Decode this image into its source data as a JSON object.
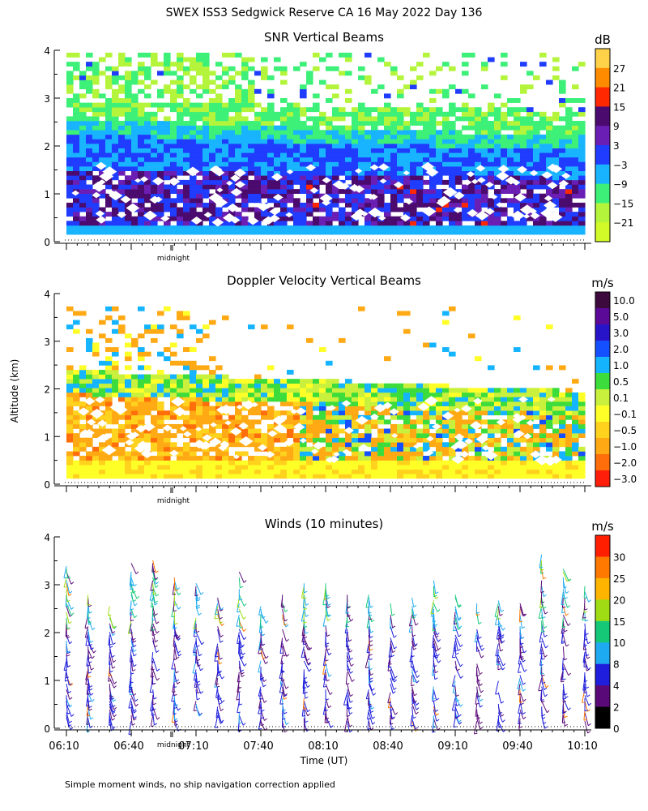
{
  "figure": {
    "title": "SWEX ISS3 Sedgwick Reserve CA  16 May 2022 Day 136",
    "ylabel": "Altitude (km)",
    "xlabel": "Time (UT)",
    "footnote": "Simple moment winds, no ship navigation correction applied",
    "midnight_label": "midnight",
    "x_ticks": [
      "06:10",
      "06:40",
      "07:10",
      "07:40",
      "08:10",
      "08:40",
      "09:10",
      "09:40",
      "10:10"
    ],
    "y_ticks": [
      "0",
      "1",
      "2",
      "3",
      "4"
    ]
  },
  "chart_data": [
    {
      "type": "heatmap",
      "title": "SNR Vertical Beams",
      "ylim": [
        0,
        4
      ],
      "xlim": [
        "06:10",
        "10:10"
      ],
      "colorbar": {
        "unit": "dB",
        "labels": [
          "27",
          "21",
          "15",
          "9",
          "3",
          "−3",
          "−9",
          "−15",
          "−21"
        ],
        "colors": [
          "#ffd24a",
          "#ff8c00",
          "#ff2800",
          "#4b0a6e",
          "#6a1eb4",
          "#1f3cff",
          "#19b4ff",
          "#3cf078",
          "#b4f53c",
          "#d2fa28"
        ]
      },
      "layers": [
        {
          "altitude_km": [
            3.0,
            3.9
          ],
          "value_db": -21,
          "description_color": "#d2fa28"
        },
        {
          "altitude_km": [
            2.2,
            3.0
          ],
          "value_db": -15,
          "description_color": "#3cf078"
        },
        {
          "altitude_km": [
            1.6,
            2.2
          ],
          "value_db": -9,
          "description_color": "#19b4ff"
        },
        {
          "altitude_km": [
            0.2,
            1.6
          ],
          "value_db": -3,
          "description_color": "#1f3cff"
        },
        {
          "altitude_km": [
            0.5,
            1.4
          ],
          "value_db": 9,
          "description_color": "#4b0a6e"
        }
      ]
    },
    {
      "type": "heatmap",
      "title": "Doppler Velocity Vertical Beams",
      "ylim": [
        0,
        4
      ],
      "xlim": [
        "06:10",
        "10:10"
      ],
      "colorbar": {
        "unit": "m/s",
        "labels": [
          "10.0",
          "5.0",
          "3.0",
          "2.0",
          "1.0",
          "0.5",
          "0.1",
          "−0.1",
          "−0.5",
          "−1.0",
          "−2.0",
          "−3.0"
        ],
        "colors": [
          "#3c0a3c",
          "#5a0a96",
          "#2814c8",
          "#1450ff",
          "#14b4ff",
          "#3cdc3c",
          "#c8f03c",
          "#ffff28",
          "#ffd21e",
          "#ffaa14",
          "#ff6e0a",
          "#ff1e0a"
        ]
      },
      "layers": [
        {
          "altitude_km": [
            0.1,
            0.4
          ],
          "value_ms": -0.1
        },
        {
          "altitude_km": [
            0.4,
            2.3
          ],
          "value_ms": -1.0
        },
        {
          "altitude_km": [
            1.6,
            2.0
          ],
          "value_ms": 0.5
        }
      ]
    },
    {
      "type": "scatter",
      "title": "Winds (10 minutes)",
      "ylim": [
        0,
        4
      ],
      "xlim": [
        "06:10",
        "10:10"
      ],
      "colorbar": {
        "unit": "m/s",
        "labels": [
          "30",
          "25",
          "20",
          "15",
          "10",
          "8",
          "4",
          "2",
          "0"
        ],
        "colors": [
          "#ff1e00",
          "#ff7800",
          "#ffb400",
          "#a0dc14",
          "#14c878",
          "#1eaaf0",
          "#1e1edc",
          "#5a0a78",
          "#000000"
        ]
      },
      "profile_times": [
        "06:10",
        "06:20",
        "06:30",
        "06:40",
        "06:50",
        "07:00",
        "07:10",
        "07:20",
        "07:30",
        "07:40",
        "07:50",
        "08:00",
        "08:10",
        "08:20",
        "08:30",
        "08:40",
        "08:50",
        "09:00",
        "09:10",
        "09:20",
        "09:30",
        "09:40",
        "09:50",
        "10:00",
        "10:10"
      ]
    }
  ]
}
